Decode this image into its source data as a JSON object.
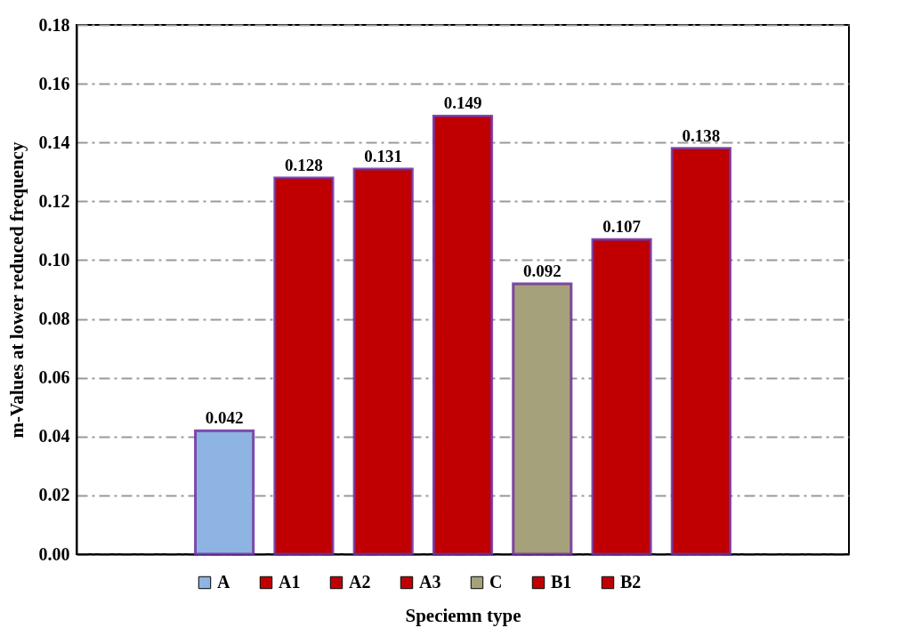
{
  "chart_data": {
    "type": "bar",
    "ylabel": "m-Values at lower reduced frequency",
    "xlabel": "Speciemn type",
    "categories": [
      null
    ],
    "series": [
      {
        "name": "A",
        "color": "#8eb4e3",
        "values": [
          0.042
        ]
      },
      {
        "name": "A1",
        "color": "#c00000",
        "values": [
          0.128
        ]
      },
      {
        "name": "A2",
        "color": "#c00000",
        "values": [
          0.131
        ]
      },
      {
        "name": "A3",
        "color": "#c00000",
        "values": [
          0.149
        ]
      },
      {
        "name": "C",
        "color": "#a5a17a",
        "values": [
          0.092
        ]
      },
      {
        "name": "B1",
        "color": "#c00000",
        "values": [
          0.107
        ]
      },
      {
        "name": "B2",
        "color": "#c00000",
        "values": [
          0.138
        ]
      }
    ],
    "ylim": [
      0,
      0.18
    ],
    "yticks": [
      {
        "value": 0,
        "label": "0.00"
      },
      0.02,
      0.04,
      0.06,
      0.08,
      {
        "value": 0.1,
        "label": "0.10"
      },
      0.12,
      0.14,
      0.16,
      0.18
    ],
    "grid": "y",
    "legend": "bottom",
    "data_labels": true
  }
}
